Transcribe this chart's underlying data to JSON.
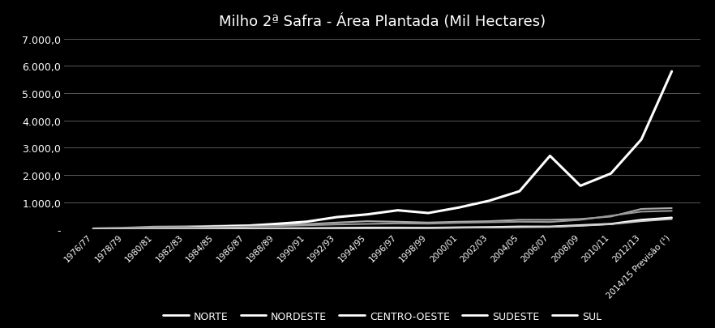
{
  "title": "Milho 2ª Safra - Área Plantada (Mil Hectares)",
  "background_color": "#000000",
  "text_color": "#ffffff",
  "grid_color": "#666666",
  "categories": [
    "1976/77",
    "1978/79",
    "1980/81",
    "1982/83",
    "1984/85",
    "1986/87",
    "1988/89",
    "1990/91",
    "1992/93",
    "1994/95",
    "1996/97",
    "1998/99",
    "2000/01",
    "2002/03",
    "2004/05",
    "2006/07",
    "2008/09",
    "2010/11",
    "2012/13",
    "2014/15 Previsão (¹)"
  ],
  "series": {
    "NORTE": [
      10,
      15,
      20,
      20,
      25,
      30,
      35,
      40,
      50,
      60,
      60,
      55,
      70,
      80,
      100,
      100,
      150,
      200,
      350,
      430
    ],
    "NORDESTE": [
      40,
      60,
      100,
      110,
      130,
      150,
      170,
      190,
      250,
      300,
      280,
      250,
      280,
      300,
      350,
      350,
      380,
      470,
      750,
      780
    ],
    "CENTRO-OESTE": [
      10,
      15,
      30,
      50,
      100,
      130,
      200,
      280,
      450,
      550,
      700,
      600,
      800,
      1050,
      1400,
      2700,
      1600,
      2050,
      3300,
      5800
    ],
    "SUDESTE": [
      20,
      30,
      50,
      60,
      80,
      100,
      120,
      150,
      180,
      200,
      220,
      210,
      240,
      260,
      280,
      270,
      350,
      500,
      650,
      680
    ],
    "SUL": [
      5,
      8,
      10,
      12,
      15,
      20,
      25,
      30,
      35,
      40,
      45,
      50,
      60,
      70,
      80,
      90,
      130,
      190,
      300,
      380
    ]
  },
  "line_styles": {
    "NORTE": {
      "color": "#ffffff",
      "lw": 1.8,
      "ls": "-"
    },
    "NORDESTE": {
      "color": "#aaaaaa",
      "lw": 1.5,
      "ls": "-"
    },
    "CENTRO-OESTE": {
      "color": "#ffffff",
      "lw": 2.2,
      "ls": "-"
    },
    "SUDESTE": {
      "color": "#999999",
      "lw": 1.5,
      "ls": "-"
    },
    "SUL": {
      "color": "#cccccc",
      "lw": 1.5,
      "ls": "-"
    }
  },
  "ylim": [
    0,
    7000
  ],
  "yticks": [
    0,
    1000,
    2000,
    3000,
    4000,
    5000,
    6000,
    7000
  ],
  "ytick_labels": [
    "-",
    "1.000,0",
    "2.000,0",
    "3.000,0",
    "4.000,0",
    "5.000,0",
    "6.000,0",
    "7.000,0"
  ]
}
